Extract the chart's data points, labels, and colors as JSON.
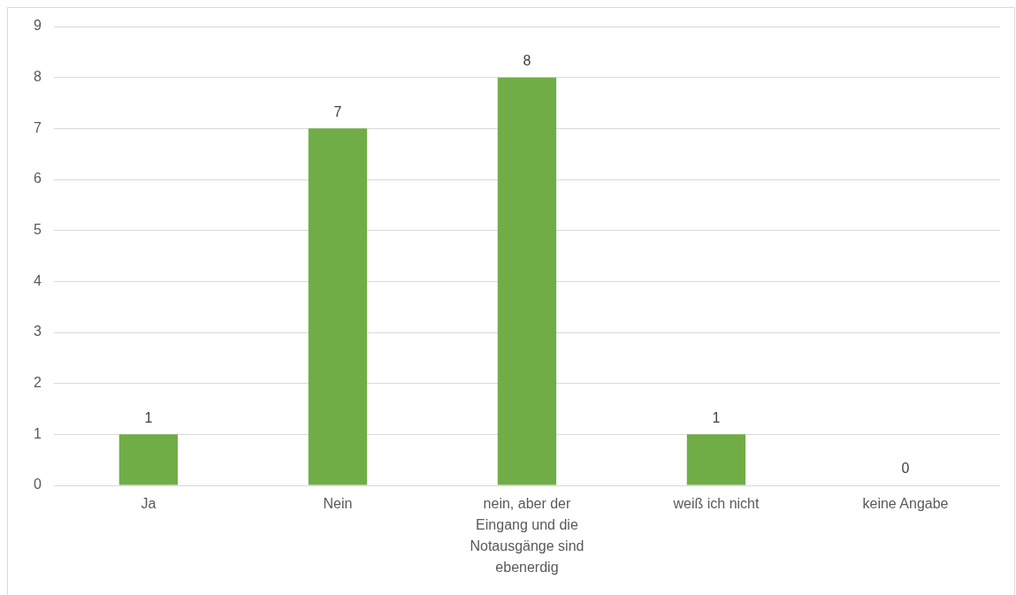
{
  "chart_data": {
    "type": "bar",
    "categories": [
      "Ja",
      "Nein",
      "nein, aber der Eingang und die Notausgänge sind ebenerdig",
      "weiß ich nicht",
      "keine Angabe"
    ],
    "values": [
      1,
      7,
      8,
      1,
      0
    ],
    "color": "#70ad47",
    "ylim": [
      0,
      9
    ],
    "yticks": [
      0,
      1,
      2,
      3,
      4,
      5,
      6,
      7,
      8,
      9
    ],
    "grid": "y",
    "data_labels": true
  }
}
